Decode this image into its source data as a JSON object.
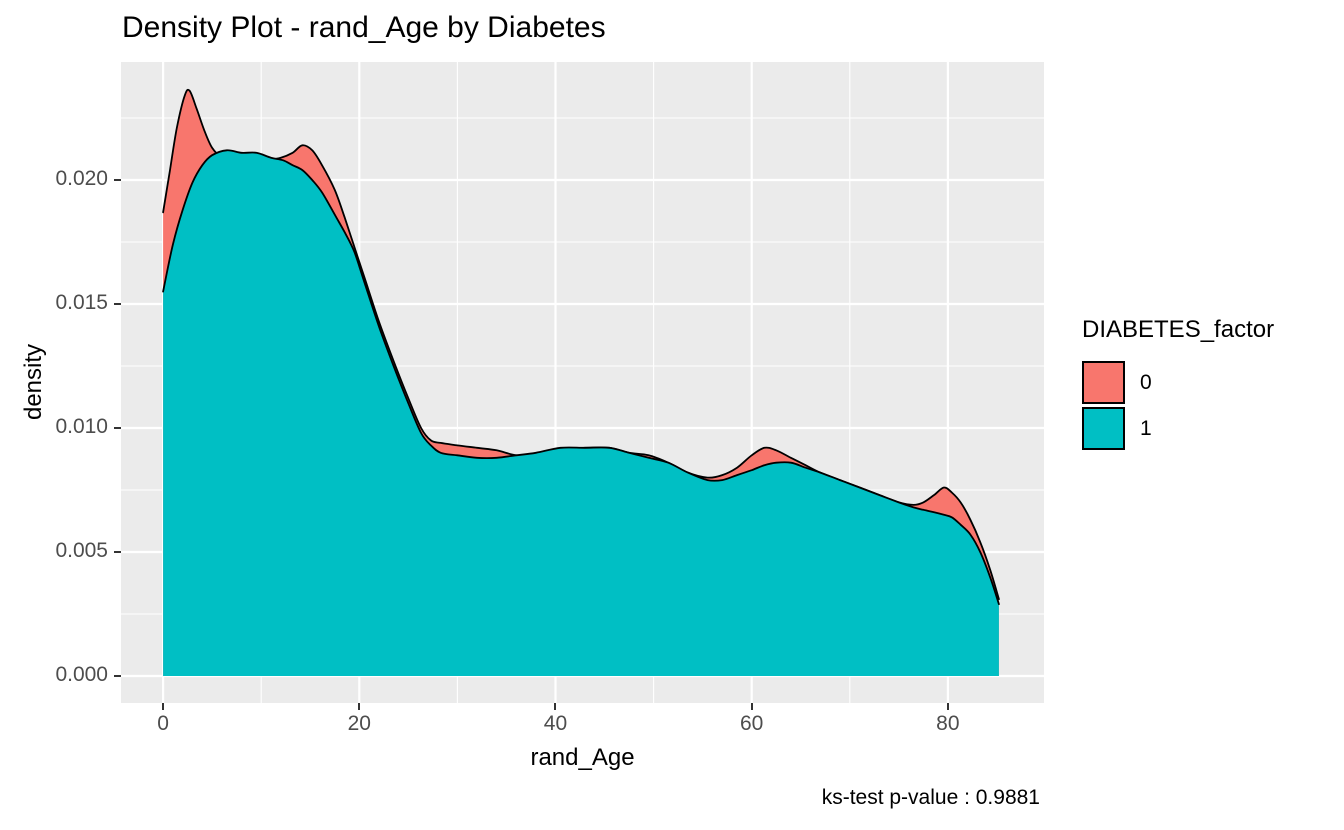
{
  "title": "Density Plot - rand_Age by Diabetes",
  "caption": "ks-test p-value : 0.9881",
  "legend": {
    "title": "DIABETES_factor",
    "items": [
      {
        "label": "0",
        "color": "#F8766D"
      },
      {
        "label": "1",
        "color": "#00BFC4"
      }
    ]
  },
  "axes": {
    "x": {
      "title": "rand_Age",
      "tick_labels": [
        "0",
        "20",
        "40",
        "60",
        "80"
      ]
    },
    "y": {
      "title": "density",
      "tick_labels": [
        "0.000",
        "0.005",
        "0.010",
        "0.015",
        "0.020"
      ]
    }
  },
  "colors": {
    "panel_bg": "#EBEBEB",
    "grid": "#FFFFFF",
    "tick_text": "#4D4D4D",
    "tick_mark": "#333333",
    "outline": "#000000",
    "series_0": "#F8766D",
    "series_1": "#00BFC4"
  },
  "chart_data": {
    "type": "area",
    "subtype": "overlaid-density",
    "title": "Density Plot - rand_Age by Diabetes",
    "xlabel": "rand_Age",
    "ylabel": "density",
    "grid": true,
    "legend_position": "right",
    "legend_title": "DIABETES_factor",
    "xlim": [
      -4.29,
      89.8
    ],
    "ylim": [
      -0.00109,
      0.02476
    ],
    "x_major_ticks": [
      0,
      20,
      40,
      60,
      80
    ],
    "x_minor_ticks": [
      10,
      30,
      50,
      70
    ],
    "y_major_ticks": [
      0,
      0.005,
      0.01,
      0.015,
      0.02
    ],
    "y_minor_ticks": [
      0.0025,
      0.0075,
      0.0125,
      0.0175,
      0.0225
    ],
    "baseline": 0,
    "series": [
      {
        "name": "0",
        "fill": "#F8766D",
        "stroke": "#000000",
        "points": [
          [
            0,
            0.0187
          ],
          [
            0.7,
            0.0204
          ],
          [
            1.4,
            0.0221
          ],
          [
            2.2,
            0.0234
          ],
          [
            2.7,
            0.0236
          ],
          [
            3.4,
            0.0229
          ],
          [
            4.2,
            0.022
          ],
          [
            5,
            0.0213
          ],
          [
            6,
            0.0209
          ],
          [
            7.5,
            0.0207
          ],
          [
            9,
            0.0207
          ],
          [
            10.5,
            0.0208
          ],
          [
            12,
            0.0209
          ],
          [
            13.2,
            0.0211
          ],
          [
            14.2,
            0.0214
          ],
          [
            15.2,
            0.0212
          ],
          [
            16.2,
            0.0206
          ],
          [
            17.5,
            0.0196
          ],
          [
            18.5,
            0.0185
          ],
          [
            19.5,
            0.0173
          ],
          [
            20.5,
            0.0161
          ],
          [
            22,
            0.0143
          ],
          [
            23.5,
            0.0127
          ],
          [
            25,
            0.0112
          ],
          [
            26.3,
            0.01
          ],
          [
            27.3,
            0.0095
          ],
          [
            28.3,
            0.0094
          ],
          [
            30,
            0.0093
          ],
          [
            32,
            0.0092
          ],
          [
            34,
            0.0091
          ],
          [
            36,
            0.0089
          ],
          [
            38,
            0.0089
          ],
          [
            40.5,
            0.0091
          ],
          [
            43,
            0.0092
          ],
          [
            45.5,
            0.0092
          ],
          [
            47.5,
            0.009
          ],
          [
            49.5,
            0.0089
          ],
          [
            51.5,
            0.0086
          ],
          [
            53.5,
            0.0082
          ],
          [
            55.5,
            0.008
          ],
          [
            57,
            0.0081
          ],
          [
            58.5,
            0.0084
          ],
          [
            60,
            0.0089
          ],
          [
            61.3,
            0.0092
          ],
          [
            62.5,
            0.0091
          ],
          [
            64,
            0.0088
          ],
          [
            65.5,
            0.0085
          ],
          [
            67,
            0.0082
          ],
          [
            69,
            0.0079
          ],
          [
            71,
            0.0076
          ],
          [
            73,
            0.0073
          ],
          [
            75,
            0.007
          ],
          [
            76.5,
            0.0069
          ],
          [
            77.5,
            0.007
          ],
          [
            78.6,
            0.0073
          ],
          [
            79.6,
            0.0076
          ],
          [
            80.4,
            0.0074
          ],
          [
            81.3,
            0.007
          ],
          [
            82.3,
            0.0063
          ],
          [
            83.3,
            0.0054
          ],
          [
            84.3,
            0.0043
          ],
          [
            85.2,
            0.0031
          ]
        ]
      },
      {
        "name": "1",
        "fill": "#00BFC4",
        "stroke": "#000000",
        "points": [
          [
            0,
            0.0155
          ],
          [
            1,
            0.0174
          ],
          [
            2,
            0.0188
          ],
          [
            3,
            0.0199
          ],
          [
            4,
            0.0206
          ],
          [
            5,
            0.021
          ],
          [
            6.5,
            0.0212
          ],
          [
            8,
            0.0211
          ],
          [
            9.5,
            0.0211
          ],
          [
            11,
            0.0209
          ],
          [
            12.2,
            0.0208
          ],
          [
            13.2,
            0.0206
          ],
          [
            14.2,
            0.0204
          ],
          [
            15.2,
            0.02
          ],
          [
            16.2,
            0.0195
          ],
          [
            17.5,
            0.0186
          ],
          [
            18.5,
            0.0179
          ],
          [
            19.5,
            0.0171
          ],
          [
            20.5,
            0.0159
          ],
          [
            22,
            0.0141
          ],
          [
            23.5,
            0.0125
          ],
          [
            25,
            0.011
          ],
          [
            26.3,
            0.0098
          ],
          [
            27.3,
            0.0093
          ],
          [
            28.3,
            0.009
          ],
          [
            30,
            0.0089
          ],
          [
            32,
            0.0088
          ],
          [
            34,
            0.0088
          ],
          [
            36,
            0.0089
          ],
          [
            38,
            0.009
          ],
          [
            40.5,
            0.0092
          ],
          [
            43,
            0.0092
          ],
          [
            45.5,
            0.0092
          ],
          [
            47.5,
            0.009
          ],
          [
            49.5,
            0.0088
          ],
          [
            51.5,
            0.0086
          ],
          [
            53.5,
            0.0082
          ],
          [
            55.5,
            0.0079
          ],
          [
            57,
            0.0079
          ],
          [
            58.5,
            0.0081
          ],
          [
            60,
            0.0083
          ],
          [
            61.3,
            0.0085
          ],
          [
            62.5,
            0.0086
          ],
          [
            64,
            0.0086
          ],
          [
            65.5,
            0.0084
          ],
          [
            67,
            0.0082
          ],
          [
            69,
            0.0079
          ],
          [
            71,
            0.0076
          ],
          [
            73,
            0.0073
          ],
          [
            75,
            0.007
          ],
          [
            76.5,
            0.0068
          ],
          [
            77.5,
            0.0067
          ],
          [
            78.6,
            0.0066
          ],
          [
            79.6,
            0.0065
          ],
          [
            80.4,
            0.0064
          ],
          [
            81.3,
            0.0061
          ],
          [
            82.3,
            0.0057
          ],
          [
            83.3,
            0.005
          ],
          [
            84.3,
            0.004
          ],
          [
            85.2,
            0.0029
          ]
        ]
      }
    ]
  }
}
